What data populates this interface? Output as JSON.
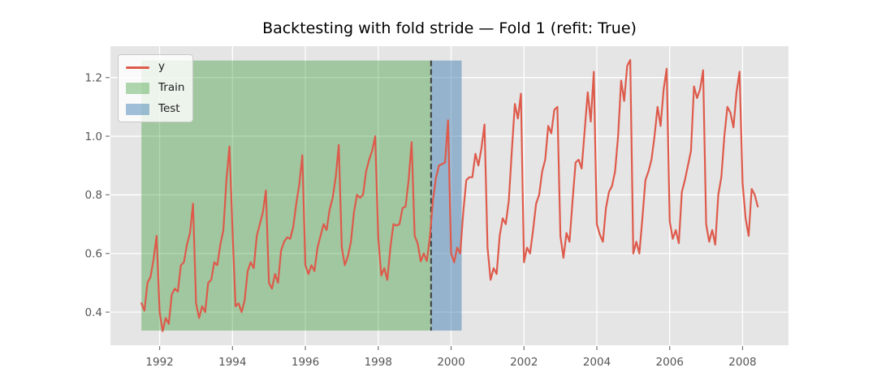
{
  "title": "Backtesting with fold stride — Fold 1 (refit: True)",
  "legend": {
    "position": "upper-left",
    "items": [
      {
        "label": "y",
        "type": "line",
        "color": "#DE5A4B"
      },
      {
        "label": "Train",
        "type": "patch",
        "color": "rgba(0,128,0,0.3)"
      },
      {
        "label": "Test",
        "type": "patch",
        "color": "rgba(70,130,180,0.5)"
      }
    ]
  },
  "chart_data": {
    "type": "line",
    "title": "Backtesting with fold stride — Fold 1 (refit: True)",
    "xlabel": "",
    "ylabel": "",
    "xlim": [
      1990.65,
      2009.26
    ],
    "ylim": [
      0.287,
      1.307
    ],
    "grid": true,
    "plot_bg": "#e5e5e5",
    "grid_color": "#ffffff",
    "tick_color": "#555555",
    "tick_mark_color": "#777777",
    "x_ticks": [
      {
        "v": 1992,
        "label": "1992"
      },
      {
        "v": 1994,
        "label": "1994"
      },
      {
        "v": 1996,
        "label": "1996"
      },
      {
        "v": 1998,
        "label": "1998"
      },
      {
        "v": 2000,
        "label": "2000"
      },
      {
        "v": 2002,
        "label": "2002"
      },
      {
        "v": 2004,
        "label": "2004"
      },
      {
        "v": 2006,
        "label": "2006"
      },
      {
        "v": 2008,
        "label": "2008"
      }
    ],
    "y_ticks": [
      {
        "v": 0.4,
        "label": "0.4"
      },
      {
        "v": 0.6,
        "label": "0.6"
      },
      {
        "v": 0.8,
        "label": "0.8"
      },
      {
        "v": 1.0,
        "label": "1.0"
      },
      {
        "v": 1.2,
        "label": "1.2"
      }
    ],
    "regions": [
      {
        "name": "Train",
        "x0": 1991.5,
        "x1": 1999.45,
        "y0": 0.337,
        "y1": 1.258,
        "color": "rgba(0,128,0,0.30)"
      },
      {
        "name": "Test",
        "x0": 1999.45,
        "x1": 2000.29,
        "y0": 0.337,
        "y1": 1.258,
        "color": "rgba(70,130,180,0.50)"
      }
    ],
    "vline": {
      "x": 1999.45,
      "y0": 0.337,
      "y1": 1.258,
      "color": "#3D3D3D",
      "style": "dashed"
    },
    "series": [
      {
        "name": "y",
        "color": "#DE5A4B",
        "start_year": 1991,
        "start_month": 7,
        "freq": "monthly",
        "values": [
          0.43,
          0.405,
          0.5,
          0.52,
          0.58,
          0.66,
          0.4,
          0.335,
          0.38,
          0.36,
          0.46,
          0.48,
          0.47,
          0.56,
          0.57,
          0.63,
          0.67,
          0.77,
          0.43,
          0.38,
          0.42,
          0.4,
          0.5,
          0.51,
          0.57,
          0.56,
          0.63,
          0.68,
          0.85,
          0.965,
          0.68,
          0.42,
          0.43,
          0.4,
          0.44,
          0.54,
          0.57,
          0.55,
          0.66,
          0.7,
          0.74,
          0.815,
          0.5,
          0.48,
          0.53,
          0.5,
          0.61,
          0.64,
          0.655,
          0.65,
          0.69,
          0.77,
          0.835,
          0.935,
          0.56,
          0.53,
          0.56,
          0.54,
          0.62,
          0.66,
          0.7,
          0.68,
          0.75,
          0.79,
          0.86,
          0.97,
          0.62,
          0.56,
          0.59,
          0.64,
          0.74,
          0.8,
          0.79,
          0.8,
          0.88,
          0.92,
          0.95,
          1.0,
          0.655,
          0.525,
          0.55,
          0.51,
          0.62,
          0.7,
          0.695,
          0.7,
          0.755,
          0.76,
          0.85,
          0.98,
          0.66,
          0.634,
          0.573,
          0.6,
          0.574,
          0.655,
          0.78,
          0.857,
          0.9,
          0.905,
          0.91,
          1.054,
          0.6,
          0.57,
          0.62,
          0.6,
          0.74,
          0.85,
          0.86,
          0.86,
          0.94,
          0.9,
          0.96,
          1.04,
          0.62,
          0.51,
          0.55,
          0.53,
          0.66,
          0.72,
          0.7,
          0.78,
          0.95,
          1.11,
          1.06,
          1.145,
          0.57,
          0.62,
          0.6,
          0.68,
          0.77,
          0.8,
          0.88,
          0.92,
          1.035,
          1.01,
          1.09,
          1.1,
          0.66,
          0.585,
          0.67,
          0.64,
          0.78,
          0.91,
          0.92,
          0.89,
          1.02,
          1.15,
          1.05,
          1.22,
          0.7,
          0.664,
          0.64,
          0.755,
          0.81,
          0.83,
          0.88,
          1.0,
          1.19,
          1.12,
          1.24,
          1.26,
          0.6,
          0.64,
          0.6,
          0.72,
          0.85,
          0.88,
          0.92,
          1.0,
          1.1,
          1.035,
          1.16,
          1.23,
          0.71,
          0.65,
          0.68,
          0.635,
          0.81,
          0.85,
          0.9,
          0.95,
          1.17,
          1.13,
          1.16,
          1.225,
          0.7,
          0.64,
          0.68,
          0.63,
          0.8,
          0.86,
          1.0,
          1.1,
          1.08,
          1.03,
          1.15,
          1.22,
          0.84,
          0.72,
          0.66,
          0.82,
          0.8,
          0.76
        ]
      }
    ],
    "legend_entries": [
      "y",
      "Train",
      "Test"
    ],
    "legend_position": "upper-left"
  }
}
